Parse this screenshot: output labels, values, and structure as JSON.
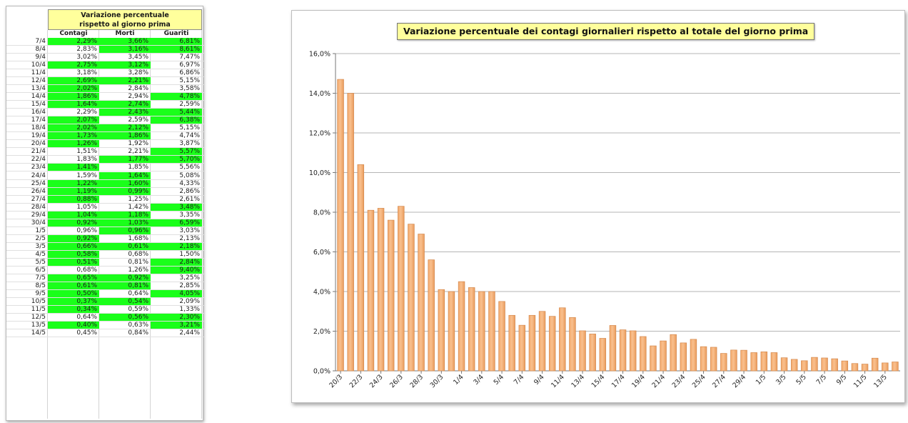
{
  "table": {
    "title_line1": "Variazione percentuale",
    "title_line2": "rispetto al giorno prima",
    "headers": [
      "Contagi",
      "Morti",
      "Guariti"
    ],
    "rows": [
      {
        "date": "7/4",
        "values": [
          "2,29%",
          "3,66%",
          "6,81%"
        ],
        "green": [
          true,
          true,
          true
        ]
      },
      {
        "date": "8/4",
        "values": [
          "2,83%",
          "3,16%",
          "8,61%"
        ],
        "green": [
          false,
          true,
          true
        ]
      },
      {
        "date": "9/4",
        "values": [
          "3,02%",
          "3,45%",
          "7,47%"
        ],
        "green": [
          false,
          false,
          false
        ]
      },
      {
        "date": "10/4",
        "values": [
          "2,75%",
          "3,12%",
          "6,97%"
        ],
        "green": [
          true,
          true,
          false
        ]
      },
      {
        "date": "11/4",
        "values": [
          "3,18%",
          "3,28%",
          "6,86%"
        ],
        "green": [
          false,
          false,
          false
        ]
      },
      {
        "date": "12/4",
        "values": [
          "2,69%",
          "2,21%",
          "5,15%"
        ],
        "green": [
          true,
          true,
          false
        ]
      },
      {
        "date": "13/4",
        "values": [
          "2,02%",
          "2,84%",
          "3,58%"
        ],
        "green": [
          true,
          false,
          false
        ]
      },
      {
        "date": "14/4",
        "values": [
          "1,86%",
          "2,94%",
          "4,78%"
        ],
        "green": [
          true,
          false,
          true
        ]
      },
      {
        "date": "15/4",
        "values": [
          "1,64%",
          "2,74%",
          "2,59%"
        ],
        "green": [
          true,
          true,
          false
        ]
      },
      {
        "date": "16/4",
        "values": [
          "2,29%",
          "2,43%",
          "5,44%"
        ],
        "green": [
          false,
          true,
          true
        ]
      },
      {
        "date": "17/4",
        "values": [
          "2,07%",
          "2,59%",
          "6,38%"
        ],
        "green": [
          true,
          false,
          true
        ]
      },
      {
        "date": "18/4",
        "values": [
          "2,02%",
          "2,12%",
          "5,15%"
        ],
        "green": [
          true,
          true,
          false
        ]
      },
      {
        "date": "19/4",
        "values": [
          "1,73%",
          "1,86%",
          "4,74%"
        ],
        "green": [
          true,
          true,
          false
        ]
      },
      {
        "date": "20/4",
        "values": [
          "1,26%",
          "1,92%",
          "3,87%"
        ],
        "green": [
          true,
          false,
          false
        ]
      },
      {
        "date": "21/4",
        "values": [
          "1,51%",
          "2,21%",
          "5,57%"
        ],
        "green": [
          false,
          false,
          true
        ]
      },
      {
        "date": "22/4",
        "values": [
          "1,83%",
          "1,77%",
          "5,70%"
        ],
        "green": [
          false,
          true,
          true
        ]
      },
      {
        "date": "23/4",
        "values": [
          "1,41%",
          "1,85%",
          "5,56%"
        ],
        "green": [
          true,
          false,
          false
        ]
      },
      {
        "date": "24/4",
        "values": [
          "1,59%",
          "1,64%",
          "5,08%"
        ],
        "green": [
          false,
          true,
          false
        ]
      },
      {
        "date": "25/4",
        "values": [
          "1,22%",
          "1,60%",
          "4,33%"
        ],
        "green": [
          true,
          true,
          false
        ]
      },
      {
        "date": "26/4",
        "values": [
          "1,19%",
          "0,99%",
          "2,86%"
        ],
        "green": [
          true,
          true,
          false
        ]
      },
      {
        "date": "27/4",
        "values": [
          "0,88%",
          "1,25%",
          "2,61%"
        ],
        "green": [
          true,
          false,
          false
        ]
      },
      {
        "date": "28/4",
        "values": [
          "1,05%",
          "1,42%",
          "3,48%"
        ],
        "green": [
          false,
          false,
          true
        ]
      },
      {
        "date": "29/4",
        "values": [
          "1,04%",
          "1,18%",
          "3,35%"
        ],
        "green": [
          true,
          true,
          false
        ]
      },
      {
        "date": "30/4",
        "values": [
          "0,92%",
          "1,03%",
          "6,59%"
        ],
        "green": [
          true,
          true,
          true
        ]
      },
      {
        "date": "1/5",
        "values": [
          "0,96%",
          "0,96%",
          "3,03%"
        ],
        "green": [
          false,
          true,
          false
        ]
      },
      {
        "date": "2/5",
        "values": [
          "0,92%",
          "1,68%",
          "2,13%"
        ],
        "green": [
          true,
          false,
          false
        ]
      },
      {
        "date": "3/5",
        "values": [
          "0,66%",
          "0,61%",
          "2,18%"
        ],
        "green": [
          true,
          true,
          true
        ]
      },
      {
        "date": "4/5",
        "values": [
          "0,58%",
          "0,68%",
          "1,50%"
        ],
        "green": [
          true,
          false,
          false
        ]
      },
      {
        "date": "5/5",
        "values": [
          "0,51%",
          "0,81%",
          "2,84%"
        ],
        "green": [
          true,
          false,
          true
        ]
      },
      {
        "date": "6/5",
        "values": [
          "0,68%",
          "1,26%",
          "9,40%"
        ],
        "green": [
          false,
          false,
          true
        ]
      },
      {
        "date": "7/5",
        "values": [
          "0,65%",
          "0,92%",
          "3,25%"
        ],
        "green": [
          true,
          true,
          false
        ]
      },
      {
        "date": "8/5",
        "values": [
          "0,61%",
          "0,81%",
          "2,85%"
        ],
        "green": [
          true,
          true,
          false
        ]
      },
      {
        "date": "9/5",
        "values": [
          "0,50%",
          "0,64%",
          "4,05%"
        ],
        "green": [
          true,
          false,
          true
        ]
      },
      {
        "date": "10/5",
        "values": [
          "0,37%",
          "0,54%",
          "2,09%"
        ],
        "green": [
          true,
          true,
          false
        ]
      },
      {
        "date": "11/5",
        "values": [
          "0,34%",
          "0,59%",
          "1,33%"
        ],
        "green": [
          true,
          false,
          false
        ]
      },
      {
        "date": "12/5",
        "values": [
          "0,64%",
          "0,56%",
          "2,30%"
        ],
        "green": [
          false,
          true,
          true
        ]
      },
      {
        "date": "13/5",
        "values": [
          "0,40%",
          "0,63%",
          "3,21%"
        ],
        "green": [
          true,
          false,
          true
        ]
      },
      {
        "date": "14/5",
        "values": [
          "0,45%",
          "0,84%",
          "2,44%"
        ],
        "green": [
          false,
          false,
          false
        ]
      }
    ]
  },
  "colors": {
    "highlight_green": "#1aff1a",
    "bar_fill": "#f9c08e",
    "bar_stroke": "#d48a4f",
    "title_bg": "#ffff9c"
  },
  "chart_data": {
    "type": "bar",
    "title": "Variazione percentuale dei contagi giornalieri rispetto al totale del giorno prima",
    "ylim": [
      0,
      16
    ],
    "yticks": [
      "0,0%",
      "2,0%",
      "4,0%",
      "6,0%",
      "8,0%",
      "10,0%",
      "12,0%",
      "14,0%",
      "16,0%"
    ],
    "grid": true,
    "x_tick_labels": [
      "20/3",
      "22/3",
      "24/3",
      "26/3",
      "28/3",
      "30/3",
      "1/4",
      "3/4",
      "5/4",
      "7/4",
      "9/4",
      "11/4",
      "13/4",
      "15/4",
      "17/4",
      "19/4",
      "21/4",
      "23/4",
      "25/4",
      "27/4",
      "29/4",
      "1/5",
      "3/5",
      "5/5",
      "7/5",
      "9/5",
      "11/5",
      "13/5"
    ],
    "categories": [
      "20/3",
      "21/3",
      "22/3",
      "23/3",
      "24/3",
      "25/3",
      "26/3",
      "27/3",
      "28/3",
      "29/3",
      "30/3",
      "31/3",
      "1/4",
      "2/4",
      "3/4",
      "4/4",
      "5/4",
      "6/4",
      "7/4",
      "8/4",
      "9/4",
      "10/4",
      "11/4",
      "12/4",
      "13/4",
      "14/4",
      "15/4",
      "16/4",
      "17/4",
      "18/4",
      "19/4",
      "20/4",
      "21/4",
      "22/4",
      "23/4",
      "24/4",
      "25/4",
      "26/4",
      "27/4",
      "28/4",
      "29/4",
      "30/4",
      "1/5",
      "2/5",
      "3/5",
      "4/5",
      "5/5",
      "6/5",
      "7/5",
      "8/5",
      "9/5",
      "10/5",
      "11/5",
      "12/5",
      "13/5",
      "14/5"
    ],
    "values": [
      14.7,
      14.0,
      10.4,
      8.1,
      8.2,
      7.6,
      8.3,
      7.4,
      6.9,
      5.6,
      4.1,
      4.0,
      4.5,
      4.2,
      4.0,
      4.0,
      3.5,
      2.8,
      2.3,
      2.8,
      3.0,
      2.75,
      3.18,
      2.69,
      2.02,
      1.86,
      1.64,
      2.29,
      2.07,
      2.02,
      1.73,
      1.26,
      1.51,
      1.83,
      1.41,
      1.59,
      1.22,
      1.19,
      0.88,
      1.05,
      1.04,
      0.92,
      0.96,
      0.92,
      0.66,
      0.58,
      0.51,
      0.68,
      0.65,
      0.61,
      0.5,
      0.37,
      0.34,
      0.64,
      0.4,
      0.45
    ]
  }
}
